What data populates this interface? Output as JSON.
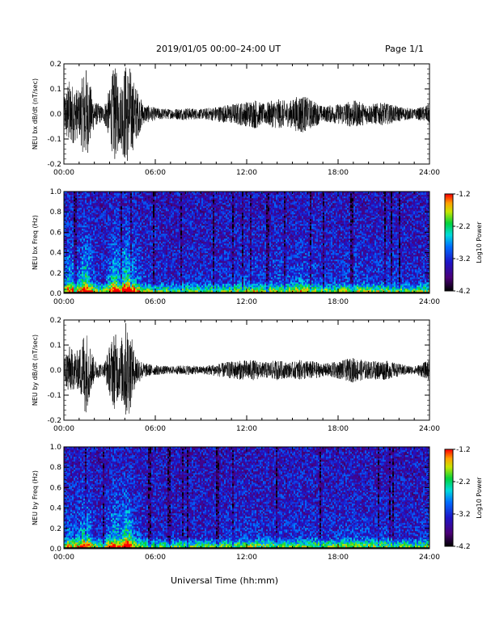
{
  "header": {
    "title": "2019/01/05  00:00–24:00 UT",
    "page": "Page 1/1"
  },
  "footer": {
    "xlabel": "Universal Time (hh:mm)"
  },
  "chart_data": [
    {
      "type": "line",
      "ylabel": "NEU bx dB/dt (nT/sec)",
      "xlim_hours": [
        0,
        24
      ],
      "ylim": [
        -0.2,
        0.2
      ],
      "xticks": [
        "00:00",
        "06:00",
        "12:00",
        "18:00",
        "24:00"
      ],
      "yticks": [
        "-0.2",
        "-0.1",
        "0.0",
        "0.1",
        "0.2"
      ],
      "envelope": {
        "hours": [
          0,
          0.3,
          0.6,
          1.0,
          1.4,
          2.0,
          2.6,
          3.0,
          3.3,
          3.7,
          4.0,
          4.3,
          4.6,
          5.2,
          6.0,
          7.0,
          8.0,
          9.0,
          10.0,
          11.0,
          12.0,
          12.6,
          13.0,
          14.0,
          14.8,
          15.5,
          16.5,
          17.0,
          18.0,
          19.0,
          20.0,
          21.0,
          22.0,
          23.0,
          23.6,
          24.0
        ],
        "amplitude": [
          0.06,
          0.14,
          0.12,
          0.09,
          0.2,
          0.05,
          0.03,
          0.1,
          0.2,
          0.12,
          0.2,
          0.2,
          0.13,
          0.04,
          0.025,
          0.02,
          0.025,
          0.02,
          0.03,
          0.04,
          0.05,
          0.06,
          0.04,
          0.06,
          0.05,
          0.08,
          0.05,
          0.03,
          0.04,
          0.055,
          0.04,
          0.045,
          0.03,
          0.02,
          0.03,
          0.04
        ]
      }
    },
    {
      "type": "heatmap",
      "ylabel": "NEU bx Freq (Hz)",
      "colorbar_label": "Log10 Power",
      "colorbar_ticks": [
        "-1.2",
        "-2.2",
        "-3.2",
        "-4.2"
      ],
      "clim": [
        -4.2,
        -1.2
      ],
      "xlim_hours": [
        0,
        24
      ],
      "ylim": [
        0,
        1.0
      ],
      "xticks": [
        "00:00",
        "06:00",
        "12:00",
        "18:00",
        "24:00"
      ],
      "yticks": [
        "0.0",
        "0.2",
        "0.4",
        "0.6",
        "0.8",
        "1.0"
      ]
    },
    {
      "type": "line",
      "ylabel": "NEU by dB/dt (nT/sec)",
      "xlim_hours": [
        0,
        24
      ],
      "ylim": [
        -0.2,
        0.2
      ],
      "xticks": [
        "00:00",
        "06:00",
        "12:00",
        "18:00",
        "24:00"
      ],
      "yticks": [
        "-0.2",
        "-0.1",
        "0.0",
        "0.1",
        "0.2"
      ],
      "envelope": {
        "hours": [
          0,
          0.3,
          0.6,
          1.0,
          1.4,
          2.0,
          2.6,
          3.0,
          3.3,
          3.7,
          4.0,
          4.3,
          4.6,
          5.2,
          6.0,
          7.0,
          8.0,
          9.0,
          10.0,
          11.0,
          12.0,
          12.6,
          13.0,
          14.0,
          14.8,
          15.5,
          16.5,
          17.0,
          18.0,
          19.0,
          20.0,
          21.0,
          22.0,
          23.0,
          23.6,
          24.0
        ],
        "amplitude": [
          0.05,
          0.1,
          0.08,
          0.08,
          0.18,
          0.04,
          0.02,
          0.1,
          0.16,
          0.1,
          0.2,
          0.18,
          0.08,
          0.03,
          0.02,
          0.015,
          0.02,
          0.015,
          0.025,
          0.035,
          0.04,
          0.04,
          0.03,
          0.04,
          0.03,
          0.04,
          0.035,
          0.025,
          0.035,
          0.05,
          0.035,
          0.04,
          0.025,
          0.015,
          0.03,
          0.04
        ]
      }
    },
    {
      "type": "heatmap",
      "ylabel": "NEU by Freq (Hz)",
      "colorbar_label": "Log10 Power",
      "colorbar_ticks": [
        "-1.2",
        "-2.2",
        "-3.2",
        "-4.2"
      ],
      "clim": [
        -4.2,
        -1.2
      ],
      "xlim_hours": [
        0,
        24
      ],
      "ylim": [
        0,
        1.0
      ],
      "xticks": [
        "00:00",
        "06:00",
        "12:00",
        "18:00",
        "24:00"
      ],
      "yticks": [
        "0.0",
        "0.2",
        "0.4",
        "0.6",
        "0.8",
        "1.0"
      ]
    }
  ]
}
